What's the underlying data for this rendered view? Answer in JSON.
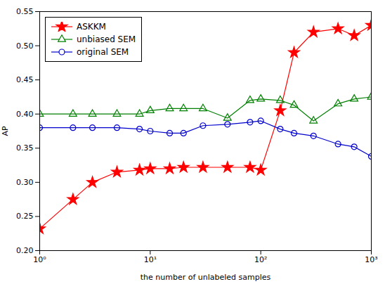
{
  "chart_data": {
    "type": "line",
    "title": "",
    "xlabel": "the number of unlabeled samples",
    "ylabel": "AP",
    "log": "x",
    "grid": false,
    "legend": "upper left",
    "x": [
      1,
      2,
      3,
      5,
      8,
      10,
      15,
      20,
      30,
      50,
      80,
      100,
      150,
      200,
      300,
      500,
      700,
      1000
    ],
    "series": [
      {
        "name": "ASKKM",
        "color": "#ff0000",
        "marker": "star",
        "values": [
          0.232,
          0.275,
          0.3,
          0.315,
          0.318,
          0.32,
          0.32,
          0.322,
          0.322,
          0.322,
          0.322,
          0.318,
          0.405,
          0.49,
          0.52,
          0.525,
          0.515,
          0.53
        ]
      },
      {
        "name": "unbiased SEM",
        "color": "#008000",
        "marker": "open triangle",
        "values": [
          0.4,
          0.4,
          0.4,
          0.4,
          0.4,
          0.405,
          0.408,
          0.408,
          0.408,
          0.394,
          0.42,
          0.422,
          0.42,
          0.413,
          0.39,
          0.415,
          0.422,
          0.425
        ]
      },
      {
        "name": "original SEM",
        "color": "#0000cd",
        "marker": "open circle",
        "values": [
          0.38,
          0.38,
          0.38,
          0.38,
          0.378,
          0.375,
          0.372,
          0.372,
          0.383,
          0.385,
          0.388,
          0.39,
          0.378,
          0.372,
          0.368,
          0.356,
          0.352,
          0.338
        ]
      }
    ],
    "xlim": [
      1,
      1000
    ],
    "xticks": [
      {
        "value": 1,
        "label": "10⁰"
      },
      {
        "value": 10,
        "label": "10¹"
      },
      {
        "value": 100,
        "label": "10²"
      },
      {
        "value": 1000,
        "label": "10³"
      }
    ],
    "ylim": [
      0.2,
      0.55
    ],
    "yticks": [
      {
        "value": 0.2,
        "label": "0.20"
      },
      0.25,
      {
        "value": 0.3,
        "label": "0.30"
      },
      0.35,
      {
        "value": 0.4,
        "label": "0.40"
      },
      0.45,
      {
        "value": 0.5,
        "label": "0.50"
      },
      0.55
    ]
  }
}
